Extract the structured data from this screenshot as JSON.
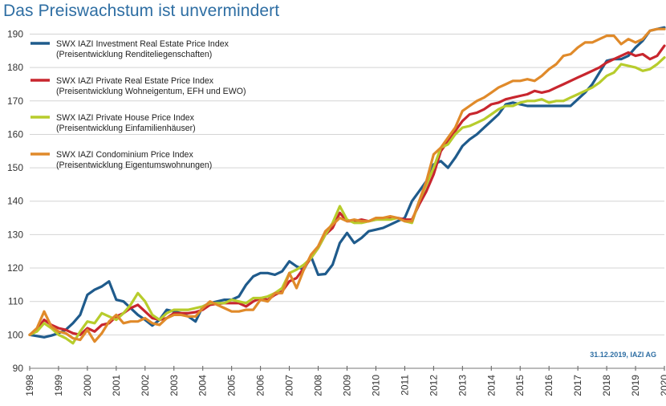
{
  "title": "Das Preiswachstum ist unvermindert",
  "source_note": "31.12.2019, IAZI AG",
  "colors": {
    "investment": "#1f5b8c",
    "private": "#c8262e",
    "house": "#b7cc2c",
    "condo": "#e08a2a",
    "title": "#2e6ea3"
  },
  "chart_data": {
    "type": "line",
    "title": "Das Preiswachstum ist unvermindert",
    "xlabel": "",
    "ylabel": "",
    "xlim": [
      1998,
      2020
    ],
    "ylim": [
      90,
      193
    ],
    "yticks": [
      90,
      100,
      110,
      120,
      130,
      140,
      150,
      160,
      170,
      180,
      190
    ],
    "xticks": [
      "1998",
      "1999",
      "2000",
      "2001",
      "2002",
      "2003",
      "2004",
      "2005",
      "2006",
      "2007",
      "2008",
      "2009",
      "2010",
      "2011",
      "2012",
      "2013",
      "2014",
      "2015",
      "2016",
      "2017",
      "2018",
      "2019",
      "2020"
    ],
    "grid": "horizontal",
    "legend_position": "top-left",
    "series": [
      {
        "key": "investment",
        "name": "SWX IAZI Investment Real Estate Price Index",
        "subtitle": "(Preisentwicklung Renditeliegenschaften)",
        "x": [
          1998.0,
          1998.5,
          1998.75,
          1999.0,
          1999.25,
          1999.5,
          1999.75,
          2000.0,
          2000.25,
          2000.5,
          2000.75,
          2001.0,
          2001.25,
          2001.5,
          2001.75,
          2002.0,
          2002.25,
          2002.5,
          2002.75,
          2003.0,
          2003.25,
          2003.5,
          2003.75,
          2004.0,
          2004.25,
          2004.5,
          2004.75,
          2005.0,
          2005.25,
          2005.5,
          2005.75,
          2006.0,
          2006.25,
          2006.5,
          2006.75,
          2007.0,
          2007.25,
          2007.5,
          2007.75,
          2008.0,
          2008.25,
          2008.5,
          2008.75,
          2009.0,
          2009.25,
          2009.5,
          2009.75,
          2010.0,
          2010.25,
          2010.5,
          2010.75,
          2011.0,
          2011.25,
          2011.5,
          2011.75,
          2012.0,
          2012.25,
          2012.5,
          2012.75,
          2013.0,
          2013.25,
          2013.5,
          2013.75,
          2014.0,
          2014.25,
          2014.5,
          2014.75,
          2015.0,
          2015.25,
          2015.5,
          2015.75,
          2016.0,
          2016.25,
          2016.5,
          2016.75,
          2017.0,
          2017.25,
          2017.5,
          2017.75,
          2018.0,
          2018.25,
          2018.5,
          2018.75,
          2019.0,
          2019.25,
          2019.5,
          2019.75,
          2020.0
        ],
        "values": [
          100,
          99.3,
          99.8,
          100.5,
          101.5,
          103.5,
          106,
          112,
          113.5,
          114.5,
          116,
          110.5,
          110,
          108,
          106,
          104.5,
          102.8,
          104.5,
          107.5,
          107,
          106.5,
          105.5,
          104,
          108.5,
          109.5,
          110,
          110.5,
          110.5,
          111.5,
          115,
          117.5,
          118.5,
          118.5,
          118,
          119,
          122,
          120.5,
          119.5,
          123.5,
          118,
          118.2,
          121,
          127.5,
          130.5,
          127.5,
          129,
          131,
          131.5,
          132,
          133,
          134,
          135,
          140,
          143,
          146,
          151,
          152,
          150,
          153,
          156.5,
          158.5,
          160,
          162,
          164,
          166,
          169,
          169.5,
          169,
          168.5,
          168.5,
          168.5,
          168.5,
          168.5,
          168.5,
          168.5,
          170.5,
          172.5,
          175,
          178.5,
          182,
          182.5,
          182.5,
          183.5,
          186,
          188,
          191,
          191.5,
          192
        ]
      },
      {
        "key": "private",
        "name": "SWX IAZI Private Real Estate Price Index",
        "subtitle": "(Preisentwicklung Wohneigentum, EFH und EWO)",
        "x": [
          1998.0,
          1998.25,
          1998.5,
          1998.75,
          1999.0,
          1999.25,
          1999.5,
          1999.75,
          2000.0,
          2000.25,
          2000.5,
          2000.75,
          2001.0,
          2001.25,
          2001.5,
          2001.75,
          2002.0,
          2002.25,
          2002.5,
          2002.75,
          2003.0,
          2003.25,
          2003.5,
          2003.75,
          2004.0,
          2004.25,
          2004.5,
          2004.75,
          2005.0,
          2005.25,
          2005.5,
          2005.75,
          2006.0,
          2006.25,
          2006.5,
          2006.75,
          2007.0,
          2007.25,
          2007.5,
          2007.75,
          2008.0,
          2008.25,
          2008.5,
          2008.75,
          2009.0,
          2009.25,
          2009.5,
          2009.75,
          2010.0,
          2010.25,
          2010.5,
          2010.75,
          2011.0,
          2011.25,
          2011.5,
          2011.75,
          2012.0,
          2012.25,
          2012.5,
          2012.75,
          2013.0,
          2013.25,
          2013.5,
          2013.75,
          2014.0,
          2014.25,
          2014.5,
          2014.75,
          2015.0,
          2015.25,
          2015.5,
          2015.75,
          2016.0,
          2016.25,
          2016.5,
          2016.75,
          2017.0,
          2017.25,
          2017.5,
          2017.75,
          2018.0,
          2018.25,
          2018.5,
          2018.75,
          2019.0,
          2019.25,
          2019.5,
          2019.75,
          2020.0
        ],
        "values": [
          100,
          101.5,
          104.5,
          103,
          102,
          101.5,
          100.5,
          100,
          102,
          101,
          103,
          103.5,
          105.5,
          106.5,
          108,
          109,
          107,
          105,
          104.5,
          105,
          106.5,
          106.5,
          106.5,
          106.8,
          107.5,
          109,
          109.3,
          109.5,
          109.5,
          109.5,
          108.5,
          110,
          111,
          110.5,
          112,
          113,
          116,
          117,
          120,
          123,
          126,
          130,
          132,
          136.5,
          134,
          134,
          134.5,
          134,
          134.5,
          135,
          135,
          135,
          134.5,
          134.5,
          139,
          143,
          148,
          155,
          158,
          161,
          164,
          166,
          166.5,
          167.5,
          169,
          169.5,
          170.5,
          171,
          171.5,
          172,
          173,
          172.5,
          173,
          174,
          175,
          176,
          177,
          178,
          179,
          180,
          181.5,
          182.5,
          183.5,
          184.5,
          183.5,
          184,
          182.5,
          183.5,
          186.5
        ]
      },
      {
        "key": "house",
        "name": "SWX IAZI Private House Price Index",
        "subtitle": "(Preisentwicklung Einfamilienhäuser)",
        "x": [
          1998.0,
          1998.25,
          1998.5,
          1998.75,
          1999.0,
          1999.25,
          1999.5,
          1999.75,
          2000.0,
          2000.25,
          2000.5,
          2000.75,
          2001.0,
          2001.25,
          2001.5,
          2001.75,
          2002.0,
          2002.25,
          2002.5,
          2002.75,
          2003.0,
          2003.25,
          2003.5,
          2003.75,
          2004.0,
          2004.25,
          2004.5,
          2004.75,
          2005.0,
          2005.25,
          2005.5,
          2005.75,
          2006.0,
          2006.25,
          2006.5,
          2006.75,
          2007.0,
          2007.25,
          2007.5,
          2007.75,
          2008.0,
          2008.25,
          2008.5,
          2008.75,
          2009.0,
          2009.25,
          2009.5,
          2009.75,
          2010.0,
          2010.25,
          2010.5,
          2010.75,
          2011.0,
          2011.25,
          2011.5,
          2011.75,
          2012.0,
          2012.25,
          2012.5,
          2012.75,
          2013.0,
          2013.25,
          2013.5,
          2013.75,
          2014.0,
          2014.25,
          2014.5,
          2014.75,
          2015.0,
          2015.25,
          2015.5,
          2015.75,
          2016.0,
          2016.25,
          2016.5,
          2016.75,
          2017.0,
          2017.25,
          2017.5,
          2017.75,
          2018.0,
          2018.25,
          2018.5,
          2018.75,
          2019.0,
          2019.25,
          2019.5,
          2019.75,
          2020.0
        ],
        "values": [
          100,
          101,
          103.5,
          102,
          100,
          99,
          97.5,
          101,
          104,
          103.5,
          106.5,
          105.5,
          104.5,
          106.5,
          109,
          112.5,
          110,
          106,
          104.5,
          106.5,
          107.5,
          107.5,
          107.5,
          108,
          108.5,
          109.5,
          109.5,
          109.5,
          110.5,
          110,
          109.5,
          111,
          111,
          111.5,
          112.5,
          114,
          118.5,
          119.5,
          121,
          123,
          126,
          130,
          133.5,
          138.5,
          134.5,
          133.5,
          133.5,
          134,
          134.5,
          134.5,
          134.5,
          135,
          134,
          133.5,
          140,
          145,
          150,
          156,
          157,
          160,
          162,
          162.5,
          163.5,
          164.5,
          166,
          167.5,
          168.5,
          168.5,
          169.5,
          170,
          170,
          170.5,
          169.5,
          170,
          170,
          171,
          172,
          173,
          174,
          175.5,
          177.5,
          178.5,
          181,
          180.5,
          180,
          179,
          179.5,
          181,
          183
        ]
      },
      {
        "key": "condo",
        "name": "SWX IAZI Condominium Price Index",
        "subtitle": "(Preisentwicklung Eigentumswohnungen)",
        "x": [
          1998.0,
          1998.25,
          1998.5,
          1998.75,
          1999.0,
          1999.25,
          1999.5,
          1999.75,
          2000.0,
          2000.25,
          2000.5,
          2000.75,
          2001.0,
          2001.25,
          2001.5,
          2001.75,
          2002.0,
          2002.25,
          2002.5,
          2002.75,
          2003.0,
          2003.25,
          2003.5,
          2003.75,
          2004.0,
          2004.25,
          2004.5,
          2004.75,
          2005.0,
          2005.25,
          2005.5,
          2005.75,
          2006.0,
          2006.25,
          2006.5,
          2006.75,
          2007.0,
          2007.25,
          2007.5,
          2007.75,
          2008.0,
          2008.25,
          2008.5,
          2008.75,
          2009.0,
          2009.25,
          2009.5,
          2009.75,
          2010.0,
          2010.25,
          2010.5,
          2010.75,
          2011.0,
          2011.25,
          2011.5,
          2011.75,
          2012.0,
          2012.25,
          2012.5,
          2012.75,
          2013.0,
          2013.25,
          2013.5,
          2013.75,
          2014.0,
          2014.25,
          2014.5,
          2014.75,
          2015.0,
          2015.25,
          2015.5,
          2015.75,
          2016.0,
          2016.25,
          2016.5,
          2016.75,
          2017.0,
          2017.25,
          2017.5,
          2017.75,
          2018.0,
          2018.25,
          2018.5,
          2018.75,
          2019.0,
          2019.25,
          2019.5,
          2019.75,
          2020.0
        ],
        "values": [
          100,
          102,
          107,
          102.5,
          101,
          100.5,
          99,
          98.5,
          101.5,
          98,
          100.5,
          104,
          106,
          103.5,
          104,
          104,
          105,
          103.5,
          103,
          105,
          106,
          106,
          105.5,
          105.5,
          108,
          110,
          109,
          108,
          107,
          107,
          107.5,
          107.5,
          110.5,
          110,
          112.5,
          112.5,
          118.5,
          114,
          119.5,
          124,
          126.5,
          131,
          133,
          135,
          134,
          134.5,
          134,
          134,
          135,
          135,
          135.5,
          135,
          134,
          134,
          140,
          146,
          154,
          156,
          159,
          162,
          167,
          168.5,
          170,
          171,
          172.5,
          174,
          175,
          176,
          176,
          176.5,
          176,
          177.5,
          179.5,
          181,
          183.5,
          184,
          186,
          187.5,
          187.5,
          188.5,
          189.5,
          189.5,
          187,
          188.5,
          187.5,
          188.5,
          191,
          191.5,
          191.5
        ]
      }
    ]
  }
}
